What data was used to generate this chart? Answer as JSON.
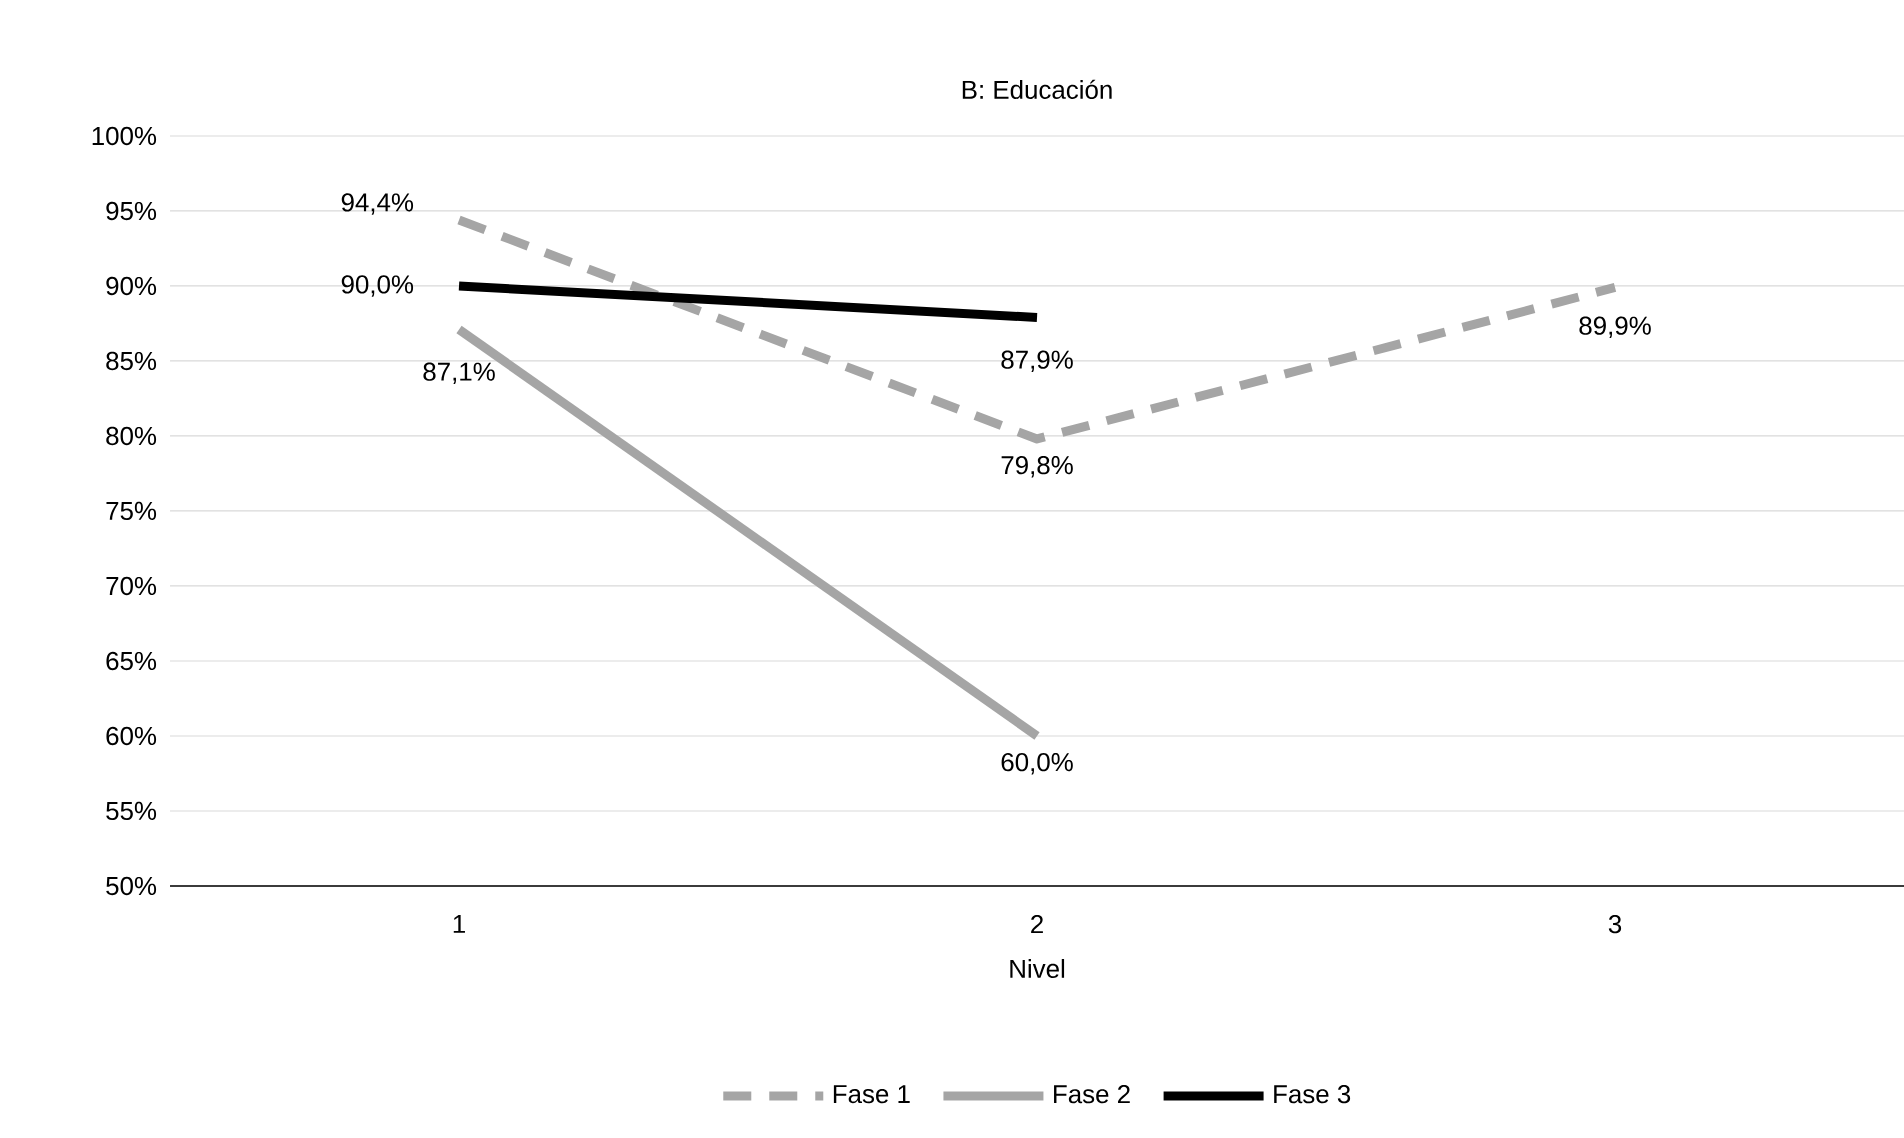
{
  "chart_data": {
    "type": "line",
    "title": "B: Educación",
    "xlabel": "Nivel",
    "categories": [
      "1",
      "2",
      "3"
    ],
    "ylim": [
      50,
      100
    ],
    "yticks": [
      {
        "value": 50,
        "label": "50%"
      },
      {
        "value": 55,
        "label": "55%"
      },
      {
        "value": 60,
        "label": "60%"
      },
      {
        "value": 65,
        "label": "65%"
      },
      {
        "value": 70,
        "label": "70%"
      },
      {
        "value": 75,
        "label": "75%"
      },
      {
        "value": 80,
        "label": "80%"
      },
      {
        "value": 85,
        "label": "85%"
      },
      {
        "value": 90,
        "label": "90%"
      },
      {
        "value": 95,
        "label": "95%"
      },
      {
        "value": 100,
        "label": "100%"
      }
    ],
    "grid": "y",
    "legend": "bottom",
    "marker": "none",
    "series": [
      {
        "name": "Fase 1",
        "color": "#a5a5a5",
        "line_style": "dashed",
        "values": [
          94.4,
          79.8,
          89.9
        ],
        "value_labels": [
          "94,4%",
          "79,8%",
          "89,9%"
        ]
      },
      {
        "name": "Fase 2",
        "color": "#a5a5a5",
        "line_style": "solid",
        "values": [
          87.1,
          60.0,
          null
        ],
        "value_labels": [
          "87,1%",
          "60,0%",
          null
        ]
      },
      {
        "name": "Fase 3",
        "color": "#000000",
        "line_style": "solid",
        "values": [
          90.0,
          87.9,
          null
        ],
        "value_labels": [
          "90,0%",
          "87,9%",
          null
        ]
      }
    ]
  }
}
